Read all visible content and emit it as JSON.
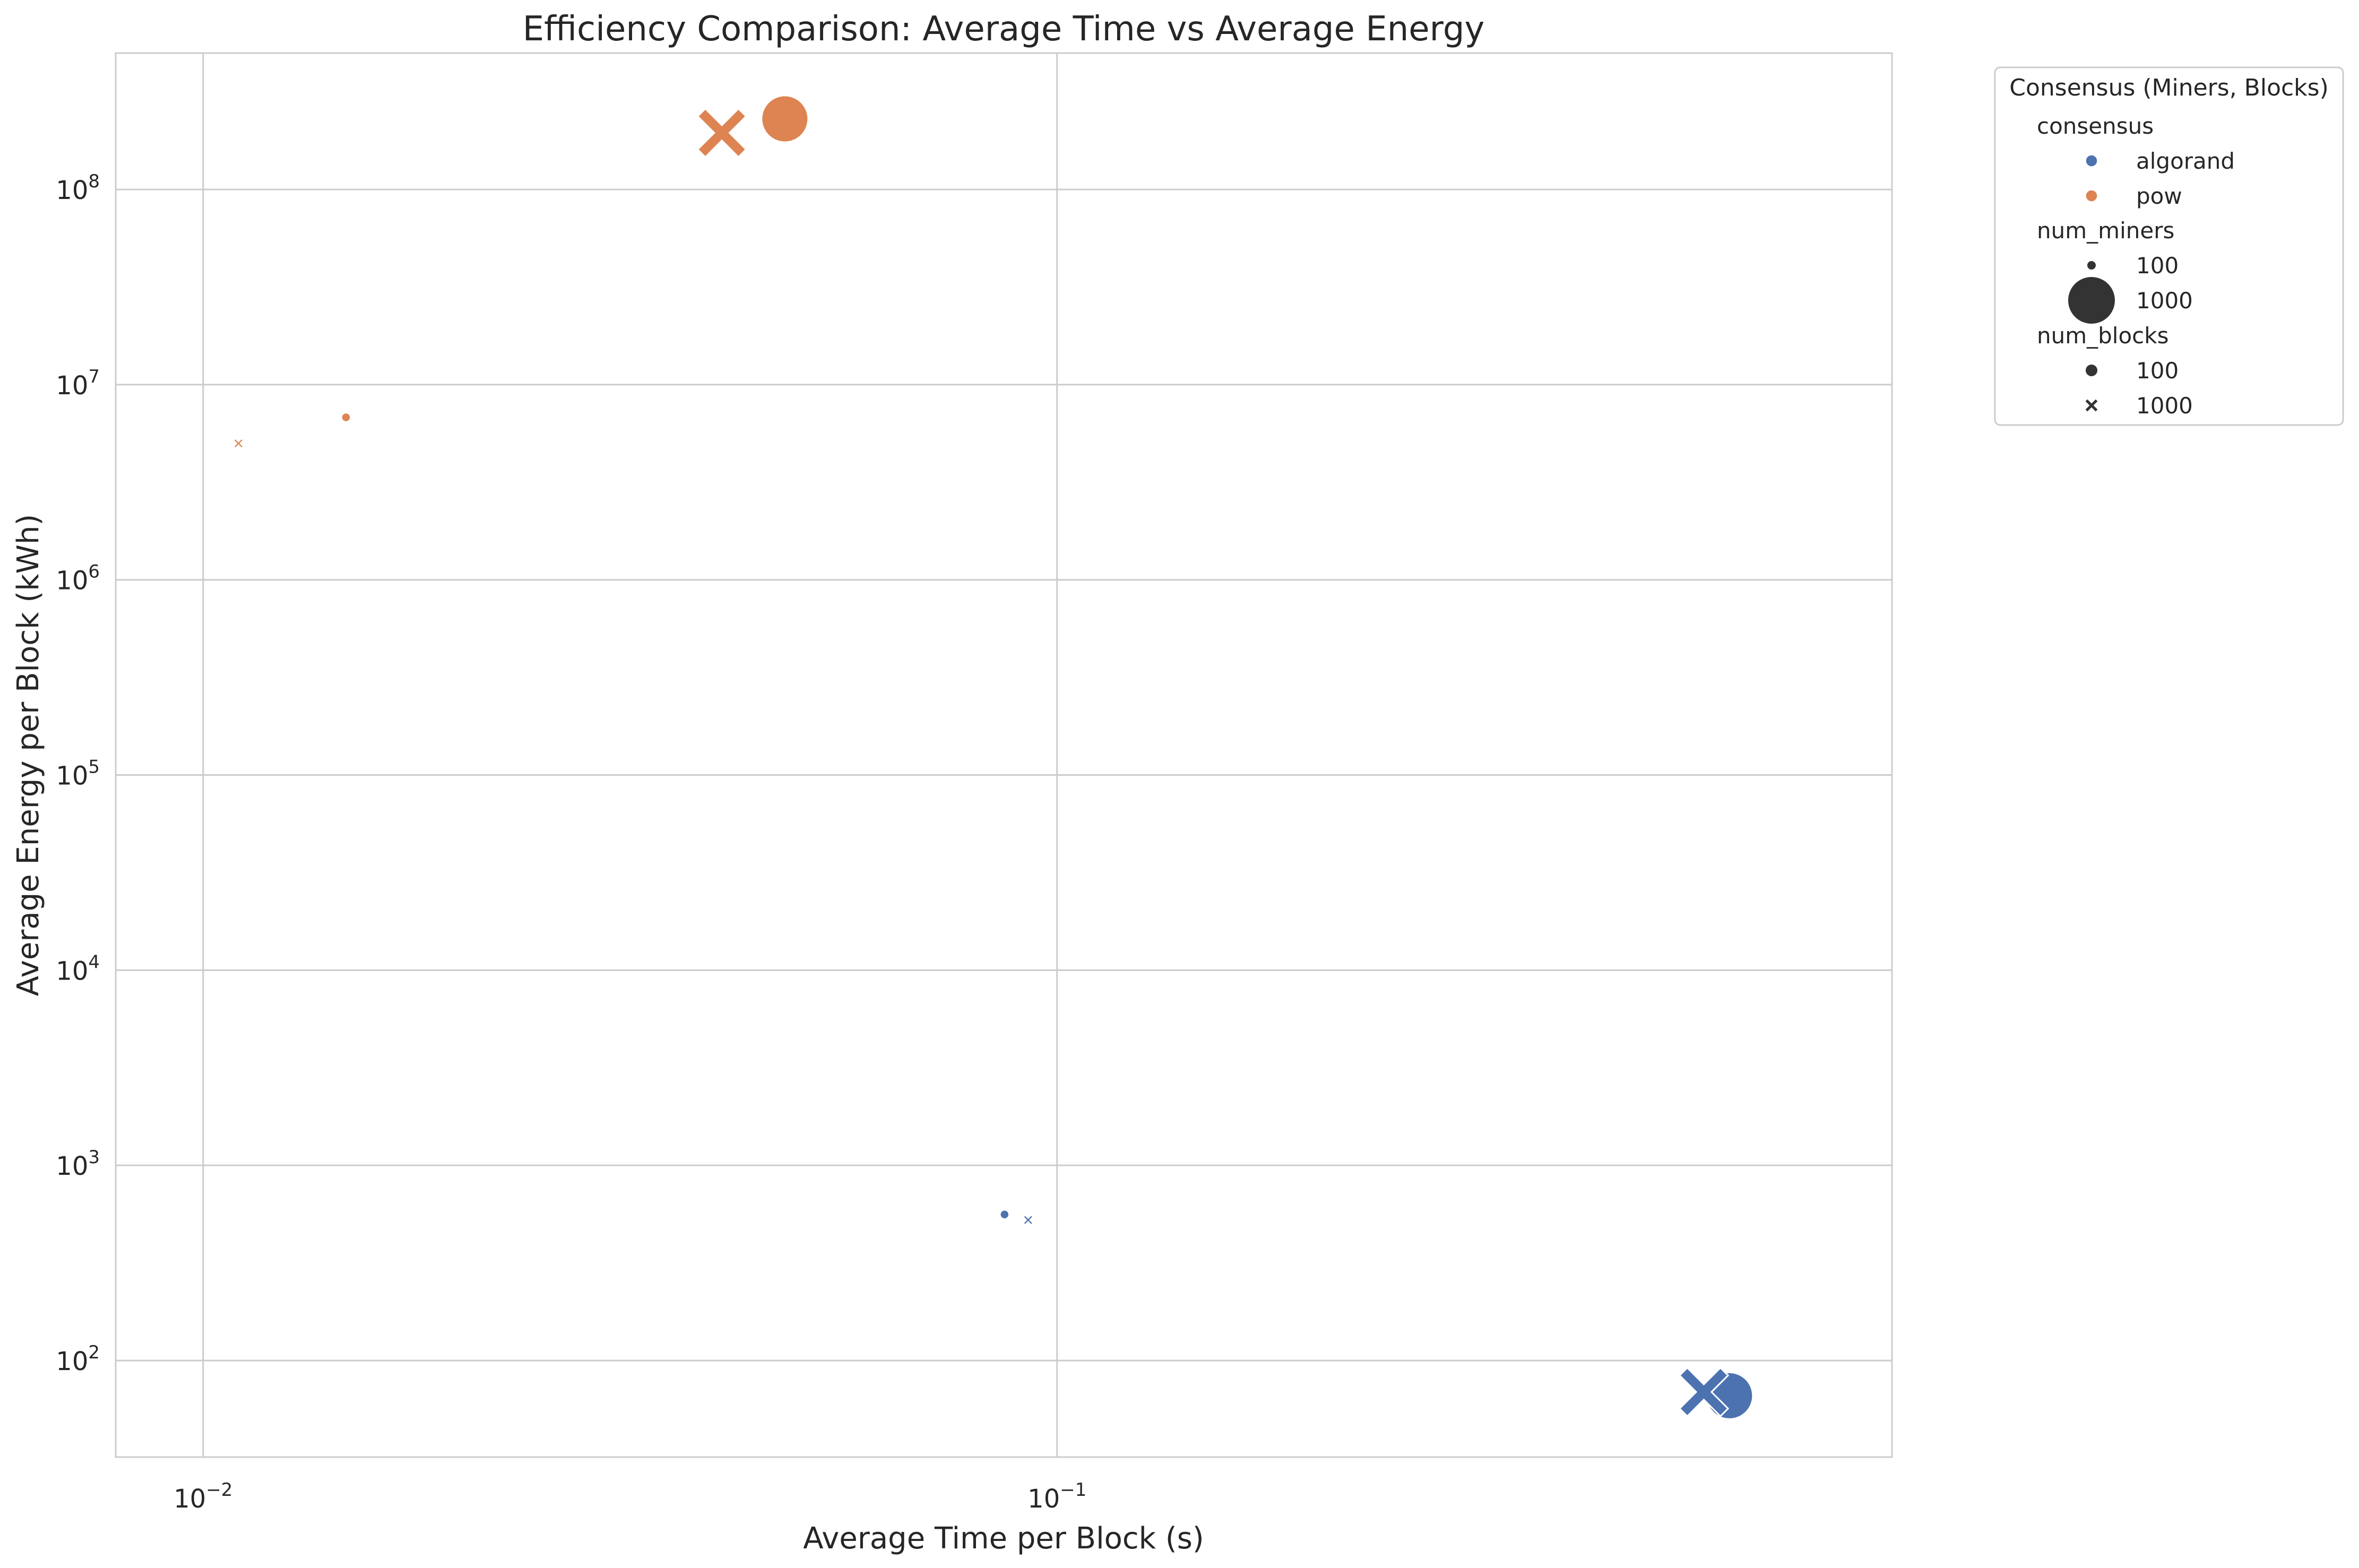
{
  "chart_data": {
    "type": "scatter",
    "title": "Efficiency Comparison: Average Time vs Average Energy",
    "xlabel": "Average Time per Block (s)",
    "ylabel": "Average Energy per Block (kWh)",
    "xscale": "log",
    "yscale": "log",
    "xlim": [
      0.0079,
      0.95
    ],
    "ylim": [
      32,
      500000000
    ],
    "grid": true,
    "x_ticks": [
      {
        "value": 0.01,
        "base": "10",
        "exp": "−2"
      },
      {
        "value": 0.1,
        "base": "10",
        "exp": "−1"
      }
    ],
    "y_ticks": [
      {
        "value": 100,
        "base": "10",
        "exp": "2"
      },
      {
        "value": 1000,
        "base": "10",
        "exp": "3"
      },
      {
        "value": 10000,
        "base": "10",
        "exp": "4"
      },
      {
        "value": 100000,
        "base": "10",
        "exp": "5"
      },
      {
        "value": 1000000,
        "base": "10",
        "exp": "6"
      },
      {
        "value": 10000000,
        "base": "10",
        "exp": "7"
      },
      {
        "value": 100000000,
        "base": "10",
        "exp": "8"
      }
    ],
    "colors": {
      "algorand": "#4c72b0",
      "pow": "#dd8452"
    },
    "points": [
      {
        "consensus": "pow",
        "num_miners": 100,
        "num_blocks": 100,
        "x": 0.0147,
        "y": 6800000
      },
      {
        "consensus": "pow",
        "num_miners": 100,
        "num_blocks": 1000,
        "x": 0.011,
        "y": 5000000
      },
      {
        "consensus": "pow",
        "num_miners": 1000,
        "num_blocks": 100,
        "x": 0.048,
        "y": 230000000
      },
      {
        "consensus": "pow",
        "num_miners": 1000,
        "num_blocks": 1000,
        "x": 0.0405,
        "y": 195000000
      },
      {
        "consensus": "algorand",
        "num_miners": 100,
        "num_blocks": 100,
        "x": 0.0868,
        "y": 560
      },
      {
        "consensus": "algorand",
        "num_miners": 100,
        "num_blocks": 1000,
        "x": 0.0925,
        "y": 525
      },
      {
        "consensus": "algorand",
        "num_miners": 1000,
        "num_blocks": 100,
        "x": 0.613,
        "y": 66
      },
      {
        "consensus": "algorand",
        "num_miners": 1000,
        "num_blocks": 1000,
        "x": 0.572,
        "y": 69
      }
    ],
    "legend": {
      "title": "Consensus (Miners, Blocks)",
      "placement": "outside upper right",
      "entries": [
        {
          "kind": "header",
          "label": "consensus"
        },
        {
          "kind": "color",
          "key": "algorand",
          "label": "algorand"
        },
        {
          "kind": "color",
          "key": "pow",
          "label": "pow"
        },
        {
          "kind": "header",
          "label": "num_miners"
        },
        {
          "kind": "size",
          "size": "small",
          "label": "100"
        },
        {
          "kind": "size",
          "size": "large",
          "label": "1000"
        },
        {
          "kind": "header",
          "label": "num_blocks"
        },
        {
          "kind": "marker",
          "marker": "circle",
          "label": "100"
        },
        {
          "kind": "marker",
          "marker": "x",
          "label": "1000"
        }
      ]
    }
  }
}
